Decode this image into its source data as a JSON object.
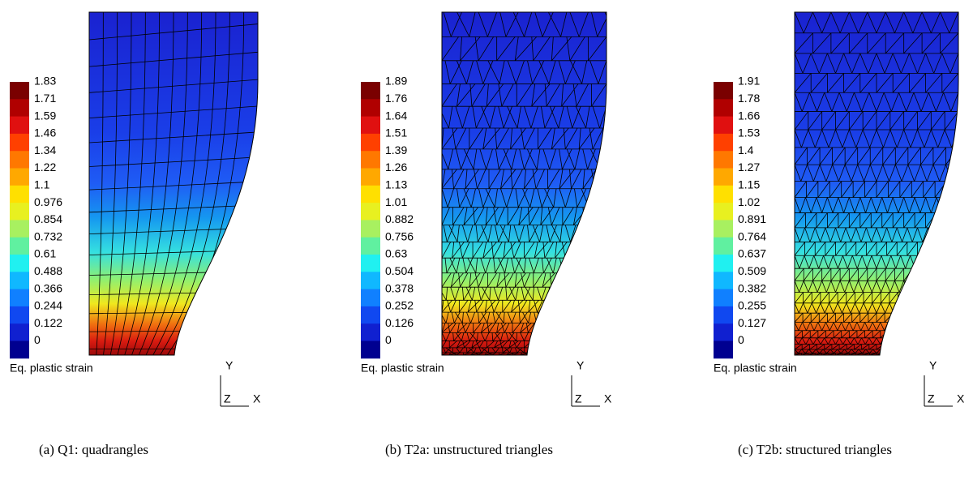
{
  "panels": [
    {
      "legend": {
        "title": "Eq. plastic strain",
        "labels": [
          "1.83",
          "1.71",
          "1.59",
          "1.46",
          "1.34",
          "1.22",
          "1.1",
          "0.976",
          "0.854",
          "0.732",
          "0.61",
          "0.488",
          "0.366",
          "0.244",
          "0.122",
          "0"
        ]
      },
      "axes": {
        "y": "Y",
        "z": "Z",
        "x": "X"
      },
      "caption": "(a) Q1: quadrangles"
    },
    {
      "legend": {
        "title": "Eq. plastic strain",
        "labels": [
          "1.89",
          "1.76",
          "1.64",
          "1.51",
          "1.39",
          "1.26",
          "1.13",
          "1.01",
          "0.882",
          "0.756",
          "0.63",
          "0.504",
          "0.378",
          "0.252",
          "0.126",
          "0"
        ]
      },
      "axes": {
        "y": "Y",
        "z": "Z",
        "x": "X"
      },
      "caption": "(b) T2a: unstructured triangles"
    },
    {
      "legend": {
        "title": "Eq. plastic strain",
        "labels": [
          "1.91",
          "1.78",
          "1.66",
          "1.53",
          "1.4",
          "1.27",
          "1.15",
          "1.02",
          "0.891",
          "0.764",
          "0.637",
          "0.509",
          "0.382",
          "0.255",
          "0.127",
          "0"
        ]
      },
      "axes": {
        "y": "Y",
        "z": "Z",
        "x": "X"
      },
      "caption": "(c) T2b: structured triangles"
    }
  ]
}
